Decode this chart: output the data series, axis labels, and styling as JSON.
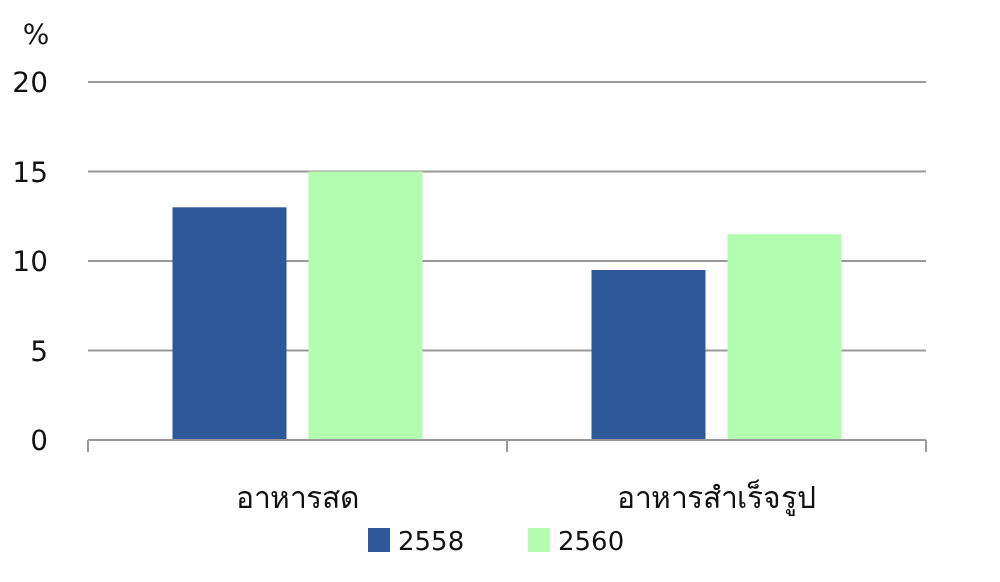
{
  "chart_data": {
    "type": "bar",
    "ylabel": "%",
    "categories": [
      "อาหารสด",
      "อาหารสำเร็จรูป"
    ],
    "series": [
      {
        "name": "2558",
        "color": "#2e5899",
        "values": [
          13,
          9.5
        ]
      },
      {
        "name": "2560",
        "color": "#b3fdb0",
        "values": [
          15,
          11.5
        ]
      }
    ],
    "ylim": [
      0,
      20
    ],
    "yticks": [
      0,
      5,
      10,
      15,
      20
    ],
    "grid": "y",
    "legend": "bottom"
  }
}
